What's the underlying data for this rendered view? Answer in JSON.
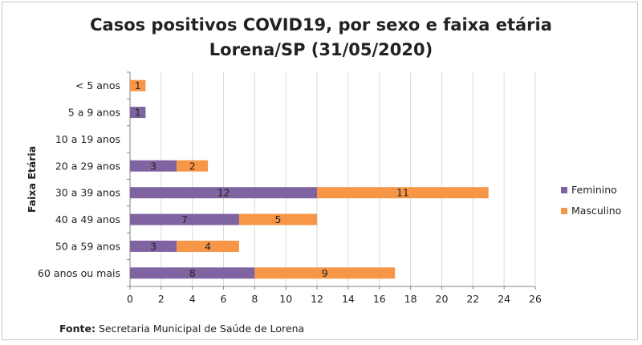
{
  "chart_data": {
    "type": "bar",
    "orientation": "horizontal",
    "stacked": true,
    "title": [
      "Casos positivos COVID19, por sexo e faixa etária",
      "Lorena/SP (31/05/2020)"
    ],
    "ylabel": "Faixa Etária",
    "xlabel": "",
    "xlim": [
      0,
      26
    ],
    "x_ticks": [
      0,
      2,
      4,
      6,
      8,
      10,
      12,
      14,
      16,
      18,
      20,
      22,
      24,
      26
    ],
    "grid": true,
    "legend_position": "right",
    "categories": [
      "< 5 anos",
      "5 a 9 anos",
      "10 a 19 anos",
      "20 a 29 anos",
      "30 a 39 anos",
      "40 a 49 anos",
      "50 a 59 anos",
      "60 anos ou mais"
    ],
    "series": [
      {
        "name": "Feminino",
        "color": "#8064a2",
        "values": [
          0,
          1,
          0,
          3,
          12,
          7,
          3,
          8
        ]
      },
      {
        "name": "Masculino",
        "color": "#f79646",
        "values": [
          1,
          0,
          0,
          2,
          11,
          5,
          4,
          9
        ]
      }
    ]
  },
  "footer": {
    "label": "Fonte:",
    "text": "Secretaria Municipal de Saúde de Lorena"
  }
}
